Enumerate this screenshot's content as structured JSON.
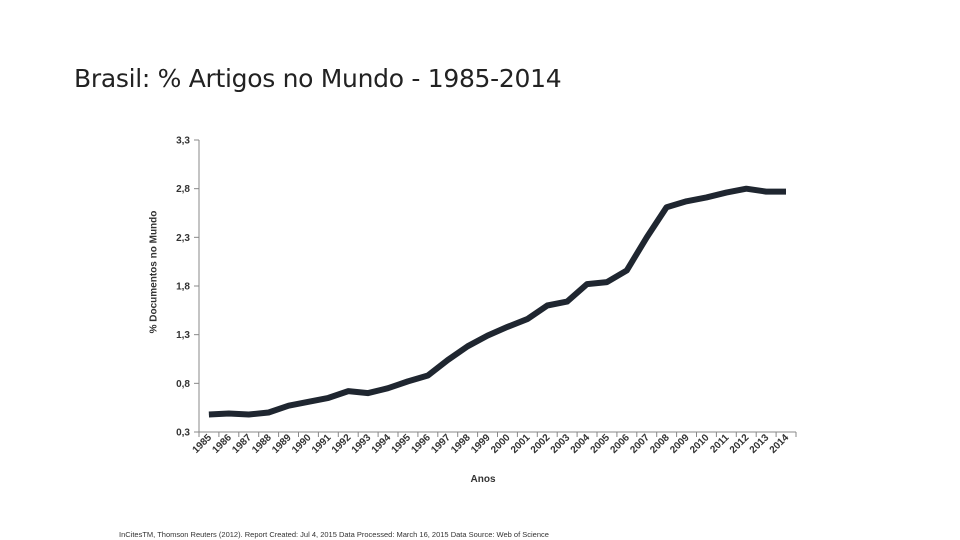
{
  "slide": {
    "title": "Brasil: % Artigos no Mundo - 1985-2014",
    "source": "InCitesTM, Thomson Reuters (2012). Report Created: Jul 4, 2015 Data Processed: March 16, 2015 Data Source: Web of Science"
  },
  "chart_data": {
    "type": "line",
    "xlabel": "Anos",
    "ylabel": "% Documentos no Mundo",
    "ylim": [
      0.3,
      3.3
    ],
    "yticks": [
      "3,3",
      "2,8",
      "2,3",
      "1,8",
      "1,3",
      "0,8",
      "0,3"
    ],
    "ytick_values": [
      3.3,
      2.8,
      2.3,
      1.8,
      1.3,
      0.8,
      0.3
    ],
    "categories": [
      "1985",
      "1986",
      "1987",
      "1988",
      "1989",
      "1990",
      "1991",
      "1992",
      "1993",
      "1994",
      "1995",
      "1996",
      "1997",
      "1998",
      "1999",
      "2000",
      "2001",
      "2002",
      "2003",
      "2004",
      "2005",
      "2006",
      "2007",
      "2008",
      "2009",
      "2010",
      "2011",
      "2012",
      "2013",
      "2014"
    ],
    "series": [
      {
        "values": [
          0.48,
          0.49,
          0.48,
          0.5,
          0.57,
          0.61,
          0.65,
          0.72,
          0.7,
          0.75,
          0.82,
          0.88,
          1.04,
          1.18,
          1.29,
          1.38,
          1.46,
          1.6,
          1.64,
          1.82,
          1.84,
          1.96,
          2.3,
          2.61,
          2.67,
          2.71,
          2.76,
          2.8,
          2.77,
          2.77
        ],
        "color": "#1f2630"
      }
    ],
    "grid": false,
    "legend": "none"
  }
}
